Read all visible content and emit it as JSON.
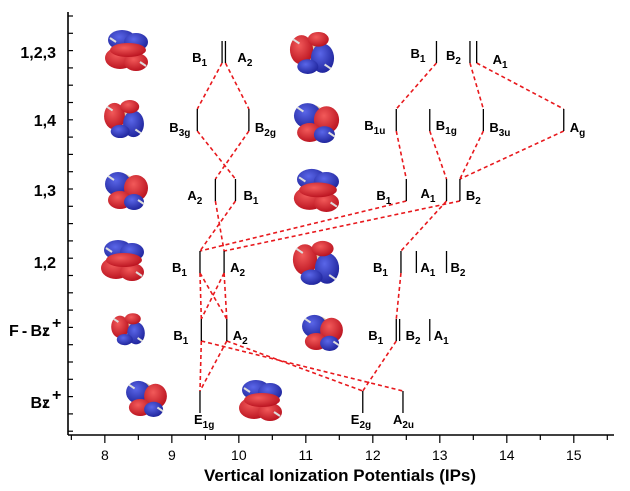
{
  "chart_data": {
    "type": "scatter",
    "xlabel": "Vertical Ionization Potentials (IPs)",
    "xlim": [
      7.45,
      15.6
    ],
    "x_ticks": [
      8,
      9,
      10,
      11,
      12,
      13,
      14,
      15
    ],
    "rows": [
      "1,2,3",
      "1,4",
      "1,3",
      "1,2",
      "F-Bz+",
      "Bz+"
    ],
    "series": [
      {
        "row": "1,2,3",
        "levels": [
          {
            "ip": 9.75,
            "label": "B",
            "sub": "1",
            "dx": -30,
            "dy": 10
          },
          {
            "ip": 9.8,
            "label": "A",
            "sub": "2",
            "dx": 12,
            "dy": 10
          },
          {
            "ip": 12.95,
            "label": "B",
            "sub": "1",
            "dx": -26,
            "dy": 6
          },
          {
            "ip": 13.45,
            "label": "B",
            "sub": "2",
            "dx": -24,
            "dy": 8
          },
          {
            "ip": 13.55,
            "label": "A",
            "sub": "1",
            "dx": 16,
            "dy": 12
          }
        ]
      },
      {
        "row": "1,4",
        "levels": [
          {
            "ip": 9.38,
            "label": "B",
            "sub": "3g",
            "dx": -28,
            "dy": 12
          },
          {
            "ip": 10.15,
            "label": "B",
            "sub": "2g",
            "dx": 6,
            "dy": 12
          },
          {
            "ip": 12.35,
            "label": "B",
            "sub": "1u",
            "dx": -32,
            "dy": 10
          },
          {
            "ip": 12.85,
            "label": "B",
            "sub": "1g",
            "dx": 6,
            "dy": 10
          },
          {
            "ip": 13.65,
            "label": "B",
            "sub": "3u",
            "dx": 6,
            "dy": 12
          },
          {
            "ip": 14.85,
            "label": "A",
            "sub": "g",
            "dx": 6,
            "dy": 12
          }
        ]
      },
      {
        "row": "1,3",
        "levels": [
          {
            "ip": 9.65,
            "label": "A",
            "sub": "2",
            "dx": -28,
            "dy": 10
          },
          {
            "ip": 9.95,
            "label": "B",
            "sub": "1",
            "dx": 8,
            "dy": 10
          },
          {
            "ip": 12.5,
            "label": "B",
            "sub": "1",
            "dx": -30,
            "dy": 10
          },
          {
            "ip": 13.1,
            "label": "A",
            "sub": "1",
            "dx": -26,
            "dy": 8
          },
          {
            "ip": 13.3,
            "label": "B",
            "sub": "2",
            "dx": 6,
            "dy": 10
          }
        ]
      },
      {
        "row": "1,2",
        "levels": [
          {
            "ip": 9.42,
            "label": "B",
            "sub": "1",
            "dx": -28,
            "dy": 10
          },
          {
            "ip": 9.78,
            "label": "A",
            "sub": "2",
            "dx": 6,
            "dy": 10
          },
          {
            "ip": 12.42,
            "label": "B",
            "sub": "1",
            "dx": -28,
            "dy": 10
          },
          {
            "ip": 12.65,
            "label": "A",
            "sub": "1",
            "dx": 4,
            "dy": 10
          },
          {
            "ip": 13.1,
            "label": "B",
            "sub": "2",
            "dx": 4,
            "dy": 10
          }
        ]
      },
      {
        "row": "F-Bz+",
        "levels": [
          {
            "ip": 9.44,
            "label": "B",
            "sub": "1",
            "dx": -28,
            "dy": 10
          },
          {
            "ip": 9.82,
            "label": "A",
            "sub": "2",
            "dx": 6,
            "dy": 10
          },
          {
            "ip": 12.35,
            "label": "B",
            "sub": "1",
            "dx": -28,
            "dy": 10
          },
          {
            "ip": 12.4,
            "label": "B",
            "sub": "2",
            "dx": 6,
            "dy": 10
          },
          {
            "ip": 12.85,
            "label": "A",
            "sub": "1",
            "dx": 4,
            "dy": 10
          }
        ]
      },
      {
        "row": "Bz+",
        "levels": [
          {
            "ip": 9.42,
            "label": "E",
            "sub": "1g",
            "dx": -6,
            "dy": 22
          },
          {
            "ip": 11.85,
            "label": "E",
            "sub": "2g",
            "dx": -12,
            "dy": 22
          },
          {
            "ip": 12.45,
            "label": "A",
            "sub": "2u",
            "dx": -10,
            "dy": 22
          }
        ]
      }
    ],
    "connectors": [
      [
        0,
        0,
        1,
        0
      ],
      [
        0,
        1,
        1,
        1
      ],
      [
        1,
        0,
        2,
        1
      ],
      [
        1,
        1,
        2,
        0
      ],
      [
        2,
        0,
        3,
        1
      ],
      [
        2,
        1,
        3,
        0
      ],
      [
        3,
        0,
        4,
        0
      ],
      [
        3,
        1,
        4,
        1
      ],
      [
        4,
        0,
        5,
        0
      ],
      [
        4,
        1,
        5,
        0
      ],
      [
        0,
        2,
        1,
        2
      ],
      [
        0,
        3,
        1,
        4
      ],
      [
        0,
        4,
        1,
        5
      ],
      [
        1,
        2,
        2,
        2
      ],
      [
        1,
        3,
        2,
        3
      ],
      [
        1,
        4,
        2,
        4
      ],
      [
        1,
        5,
        2,
        4
      ],
      [
        2,
        2,
        3,
        0
      ],
      [
        2,
        3,
        3,
        2
      ],
      [
        2,
        4,
        3,
        1
      ],
      [
        3,
        0,
        4,
        1
      ],
      [
        3,
        1,
        4,
        0
      ],
      [
        3,
        2,
        4,
        2
      ],
      [
        4,
        0,
        5,
        2
      ],
      [
        4,
        1,
        5,
        1
      ],
      [
        4,
        2,
        5,
        1
      ]
    ],
    "grid": false,
    "legend": "none",
    "colors": {
      "connector": "#e8191d",
      "orbital_positive": "#d4152a",
      "orbital_negative": "#2a2fbf",
      "axis": "#000000"
    },
    "orbital_images": {
      "column_1": [
        "orbital-123-a",
        "orbital-14-a",
        "orbital-13-a",
        "orbital-12-a",
        "orbital-fbz-a",
        "orbital-bz-e1g-a"
      ],
      "column_2": [
        "orbital-123-b",
        "orbital-14-b",
        "orbital-13-b",
        "orbital-12-b",
        "orbital-fbz-b",
        "orbital-bz-e1g-b"
      ]
    }
  }
}
